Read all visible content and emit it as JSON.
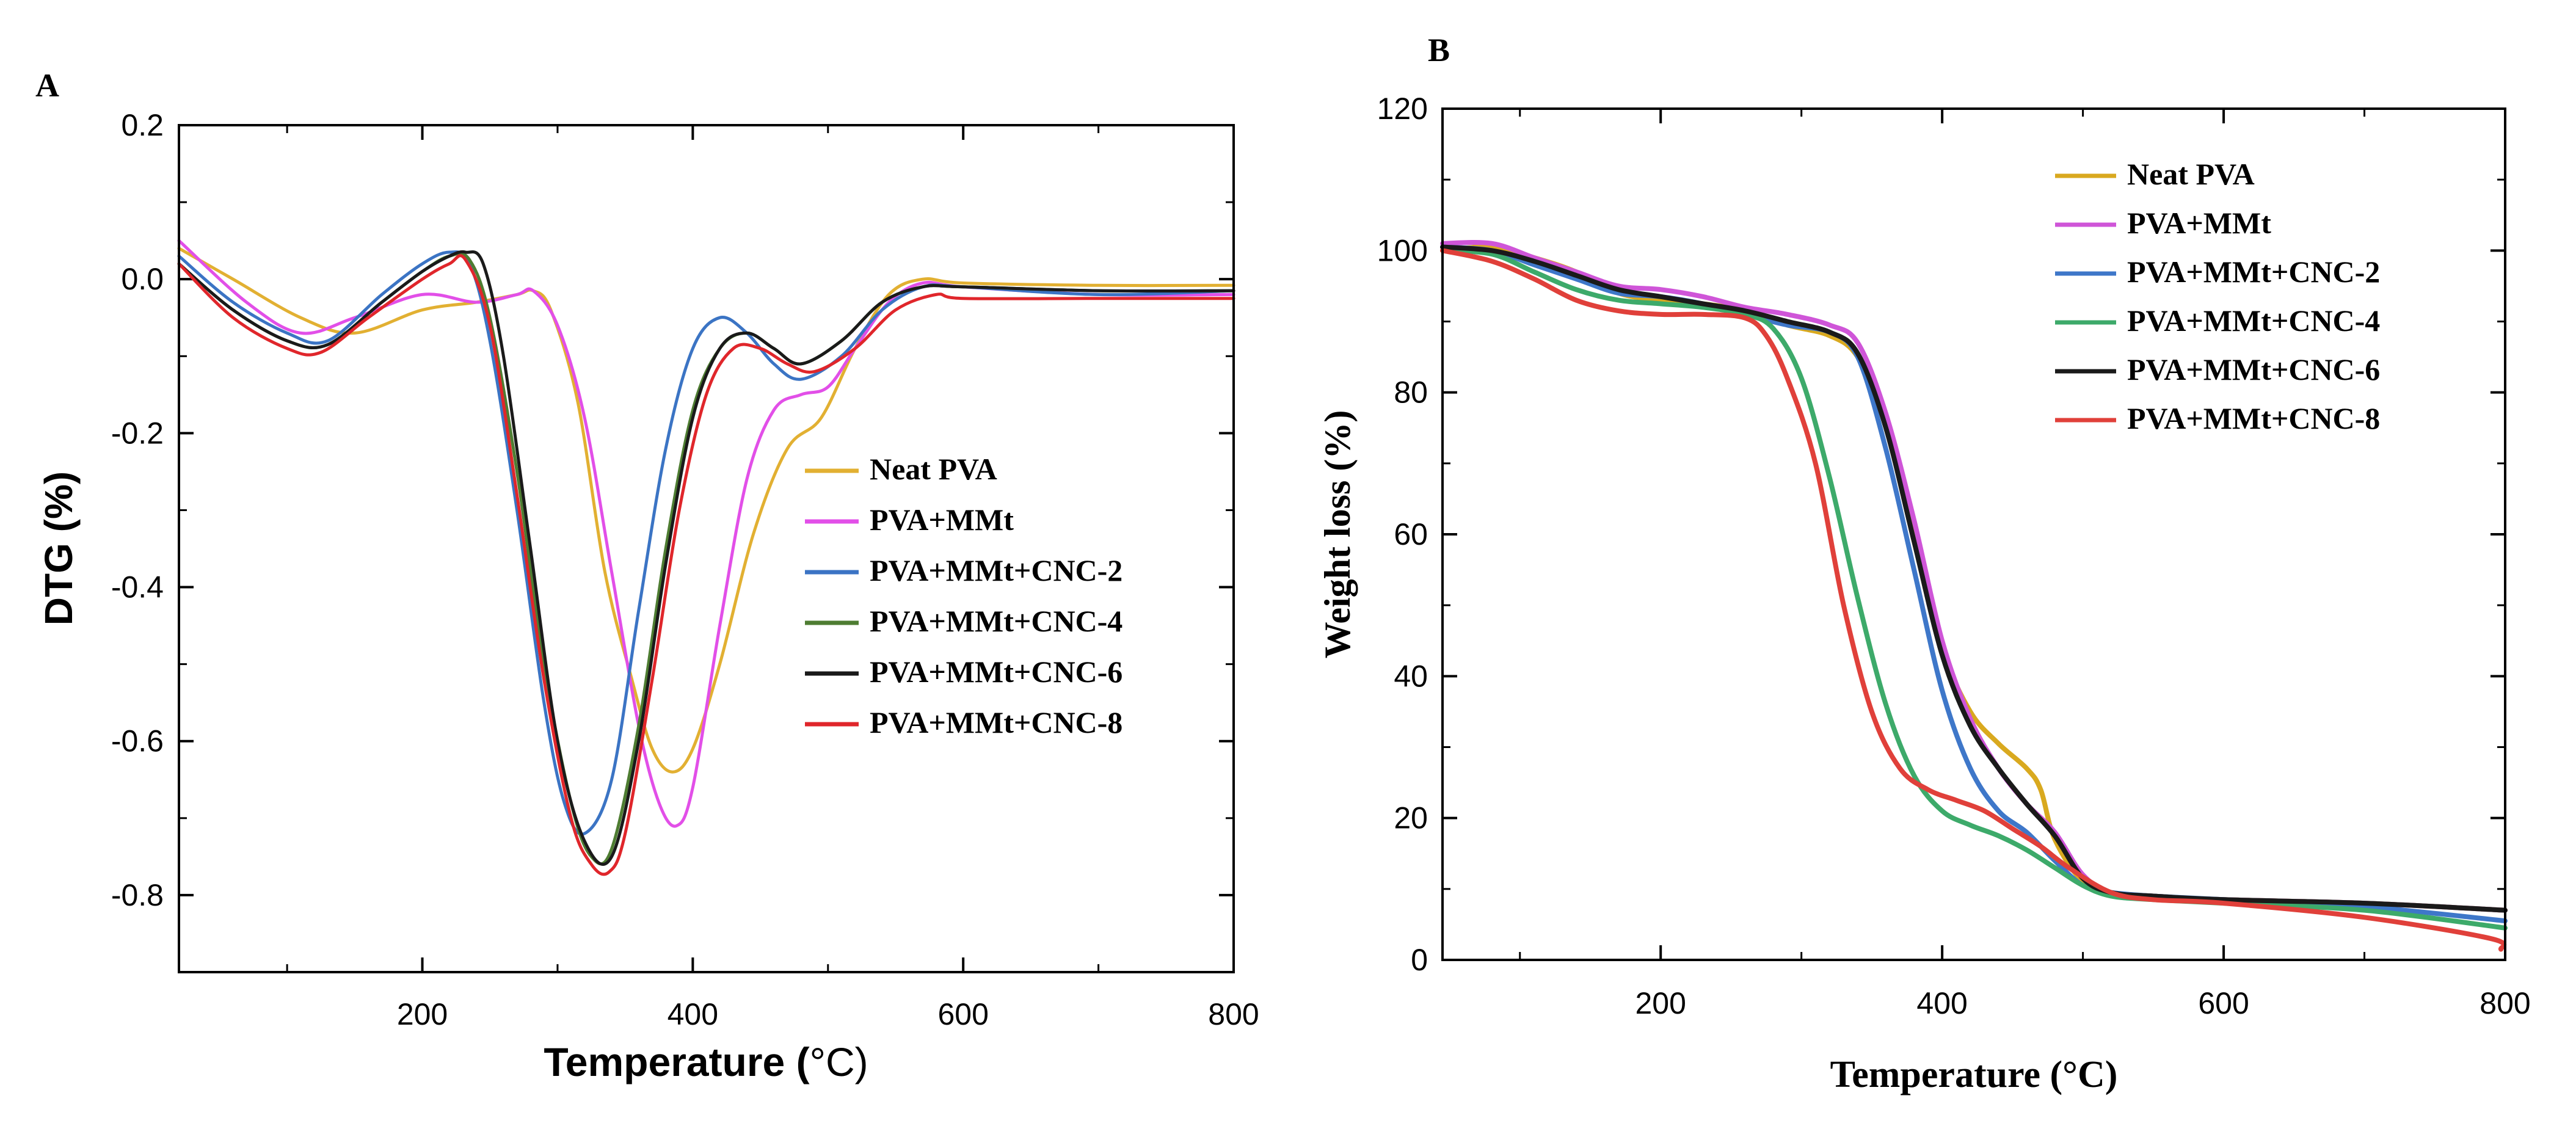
{
  "chart_data": [
    {
      "panel": "A",
      "type": "line",
      "xlabel_main": "Temperature (",
      "xlabel_unit": "°C)",
      "ylabel": "DTG (%)",
      "xlim": [
        20,
        800
      ],
      "ylim": [
        -0.9,
        0.2
      ],
      "xticks": [
        200,
        400,
        600,
        800
      ],
      "yticks": [
        0.2,
        0.0,
        -0.2,
        -0.4,
        -0.6,
        -0.8
      ],
      "ytick_labels": [
        "0.2",
        "0.0",
        "-0.2",
        "-0.4",
        "-0.6",
        "-0.8"
      ],
      "legend_position": "center-right",
      "series": [
        {
          "name": "Neat PVA",
          "color": "#E2B032",
          "x": [
            20,
            60,
            110,
            150,
            200,
            240,
            270,
            282,
            295,
            315,
            335,
            355,
            370,
            385,
            400,
            420,
            445,
            470,
            495,
            520,
            545,
            570,
            600,
            700,
            800
          ],
          "values": [
            0.04,
            0.0,
            -0.05,
            -0.07,
            -0.04,
            -0.03,
            -0.02,
            -0.015,
            -0.04,
            -0.16,
            -0.38,
            -0.52,
            -0.61,
            -0.64,
            -0.61,
            -0.5,
            -0.33,
            -0.22,
            -0.18,
            -0.09,
            -0.02,
            0.0,
            -0.005,
            -0.008,
            -0.008
          ]
        },
        {
          "name": "PVA+MMt",
          "color": "#E24FE8",
          "x": [
            20,
            70,
            110,
            150,
            200,
            240,
            270,
            282,
            300,
            320,
            340,
            360,
            375,
            388,
            400,
            420,
            440,
            460,
            480,
            500,
            520,
            545,
            570,
            600,
            700,
            800
          ],
          "values": [
            0.05,
            -0.03,
            -0.07,
            -0.05,
            -0.02,
            -0.03,
            -0.02,
            -0.015,
            -0.06,
            -0.18,
            -0.38,
            -0.58,
            -0.68,
            -0.71,
            -0.66,
            -0.45,
            -0.26,
            -0.17,
            -0.15,
            -0.14,
            -0.09,
            -0.03,
            -0.005,
            -0.01,
            -0.02,
            -0.02
          ]
        },
        {
          "name": "PVA+MMt+CNC-2",
          "color": "#3B74C4",
          "x": [
            20,
            60,
            100,
            130,
            170,
            200,
            220,
            235,
            250,
            270,
            290,
            305,
            320,
            340,
            360,
            380,
            400,
            420,
            440,
            460,
            480,
            510,
            540,
            570,
            600,
            700,
            800
          ],
          "values": [
            0.03,
            -0.03,
            -0.07,
            -0.08,
            -0.02,
            0.02,
            0.035,
            0.02,
            -0.08,
            -0.3,
            -0.55,
            -0.68,
            -0.72,
            -0.65,
            -0.43,
            -0.22,
            -0.09,
            -0.05,
            -0.07,
            -0.11,
            -0.13,
            -0.1,
            -0.04,
            -0.01,
            -0.01,
            -0.02,
            -0.015
          ]
        },
        {
          "name": "PVA+MMt+CNC-4",
          "color": "#4E7D32",
          "x": [
            20,
            60,
            100,
            130,
            170,
            200,
            220,
            235,
            250,
            270,
            290,
            310,
            325,
            340,
            360,
            380,
            400,
            420,
            440,
            460,
            480,
            510,
            540,
            570,
            600,
            700,
            800
          ],
          "values": [
            0.02,
            -0.04,
            -0.08,
            -0.085,
            -0.03,
            0.01,
            0.03,
            0.025,
            -0.05,
            -0.25,
            -0.5,
            -0.68,
            -0.75,
            -0.74,
            -0.58,
            -0.35,
            -0.17,
            -0.09,
            -0.07,
            -0.09,
            -0.11,
            -0.08,
            -0.03,
            -0.01,
            -0.01,
            -0.015,
            -0.015
          ]
        },
        {
          "name": "PVA+MMt+CNC-6",
          "color": "#1A1A1A",
          "x": [
            20,
            60,
            100,
            130,
            170,
            200,
            220,
            232,
            245,
            260,
            280,
            300,
            320,
            340,
            360,
            380,
            400,
            420,
            440,
            460,
            480,
            510,
            540,
            570,
            600,
            700,
            800
          ],
          "values": [
            0.02,
            -0.04,
            -0.08,
            -0.085,
            -0.03,
            0.01,
            0.03,
            0.035,
            0.02,
            -0.1,
            -0.35,
            -0.6,
            -0.73,
            -0.75,
            -0.6,
            -0.37,
            -0.18,
            -0.09,
            -0.07,
            -0.09,
            -0.11,
            -0.08,
            -0.03,
            -0.01,
            -0.01,
            -0.015,
            -0.015
          ]
        },
        {
          "name": "PVA+MMt+CNC-8",
          "color": "#E0262B",
          "x": [
            20,
            60,
            100,
            125,
            160,
            200,
            220,
            232,
            250,
            270,
            290,
            310,
            325,
            338,
            350,
            370,
            390,
            410,
            430,
            450,
            470,
            490,
            520,
            550,
            580,
            600,
            700,
            800
          ],
          "values": [
            0.02,
            -0.05,
            -0.09,
            -0.095,
            -0.05,
            0.0,
            0.02,
            0.025,
            -0.06,
            -0.28,
            -0.52,
            -0.7,
            -0.76,
            -0.77,
            -0.72,
            -0.52,
            -0.3,
            -0.15,
            -0.09,
            -0.09,
            -0.11,
            -0.12,
            -0.09,
            -0.04,
            -0.02,
            -0.025,
            -0.025,
            -0.025
          ]
        }
      ]
    },
    {
      "panel": "B",
      "type": "line",
      "xlabel": "Temperature (°C)",
      "ylabel": "Weight loss (%)",
      "xlim": [
        45,
        800
      ],
      "ylim": [
        0,
        120
      ],
      "xticks": [
        200,
        400,
        600,
        800
      ],
      "yticks": [
        0,
        20,
        40,
        60,
        80,
        100,
        120
      ],
      "ytick_labels": [
        "0",
        "20",
        "40",
        "60",
        "80",
        "100",
        "120"
      ],
      "legend_position": "top-right",
      "series": [
        {
          "name": "Neat PVA",
          "color": "#D9A91F",
          "x": [
            45,
            80,
            110,
            140,
            170,
            200,
            230,
            260,
            290,
            320,
            340,
            360,
            380,
            400,
            420,
            440,
            460,
            470,
            480,
            500,
            520,
            550,
            600,
            700,
            800
          ],
          "values": [
            100,
            100.5,
            99,
            97,
            94,
            93,
            92.5,
            91.5,
            89.5,
            88,
            85,
            76,
            60,
            44,
            35,
            30.5,
            27,
            24,
            17,
            11,
            9.5,
            9,
            8.5,
            8,
            7
          ]
        },
        {
          "name": "PVA+MMt",
          "color": "#CF55D8",
          "x": [
            45,
            80,
            110,
            140,
            170,
            200,
            230,
            260,
            290,
            320,
            340,
            360,
            380,
            400,
            420,
            440,
            460,
            480,
            500,
            520,
            550,
            600,
            700,
            800
          ],
          "values": [
            101,
            101,
            99,
            97,
            95,
            94.5,
            93.5,
            92,
            91,
            89.5,
            87,
            77,
            62,
            45,
            34,
            27,
            22,
            18,
            12,
            9.5,
            9,
            8.5,
            8,
            7
          ]
        },
        {
          "name": "PVA+MMt+CNC-2",
          "color": "#3E77C9",
          "x": [
            45,
            80,
            110,
            140,
            170,
            200,
            230,
            260,
            290,
            320,
            340,
            360,
            380,
            400,
            420,
            440,
            460,
            480,
            500,
            520,
            550,
            600,
            700,
            800
          ],
          "values": [
            100.5,
            100,
            98,
            96,
            94,
            93.5,
            92.5,
            91,
            89.5,
            88.5,
            85,
            72,
            55,
            38,
            27,
            21,
            18,
            14,
            10.5,
            9.5,
            9,
            8.5,
            7.5,
            5.5
          ]
        },
        {
          "name": "PVA+MMt+CNC-4",
          "color": "#3DAA6A",
          "x": [
            45,
            80,
            110,
            140,
            170,
            200,
            230,
            260,
            280,
            300,
            320,
            340,
            360,
            380,
            400,
            420,
            440,
            460,
            480,
            500,
            520,
            550,
            600,
            700,
            800
          ],
          "values": [
            100,
            99.5,
            97,
            94.5,
            93,
            92.5,
            92,
            91,
            89,
            82,
            68,
            51,
            36,
            26,
            21,
            19,
            17.5,
            15.5,
            13,
            10.5,
            9,
            8.5,
            8,
            7,
            4.5
          ]
        },
        {
          "name": "PVA+MMt+CNC-6",
          "color": "#1A1A1A",
          "x": [
            45,
            80,
            110,
            140,
            170,
            200,
            230,
            260,
            290,
            320,
            340,
            360,
            380,
            400,
            420,
            440,
            460,
            480,
            500,
            520,
            550,
            600,
            700,
            800
          ],
          "values": [
            100.5,
            100,
            98.5,
            96.5,
            94.5,
            93.5,
            92.5,
            91.5,
            90,
            88.5,
            85.5,
            75,
            59,
            43,
            33,
            27,
            22,
            17.5,
            11.5,
            9.5,
            9,
            8.5,
            8,
            7
          ]
        },
        {
          "name": "PVA+MMt+CNC-8",
          "color": "#E0403A",
          "x": [
            45,
            80,
            110,
            140,
            170,
            200,
            230,
            260,
            275,
            290,
            310,
            330,
            350,
            370,
            390,
            410,
            430,
            450,
            470,
            490,
            520,
            550,
            600,
            700,
            790,
            797
          ],
          "values": [
            100,
            98.5,
            96,
            93,
            91.5,
            91,
            91,
            90.5,
            88,
            82,
            70,
            50,
            35,
            27,
            24,
            22.5,
            21,
            18.5,
            16,
            13,
            9.5,
            8.5,
            8,
            6,
            3,
            1.5
          ]
        }
      ]
    }
  ]
}
